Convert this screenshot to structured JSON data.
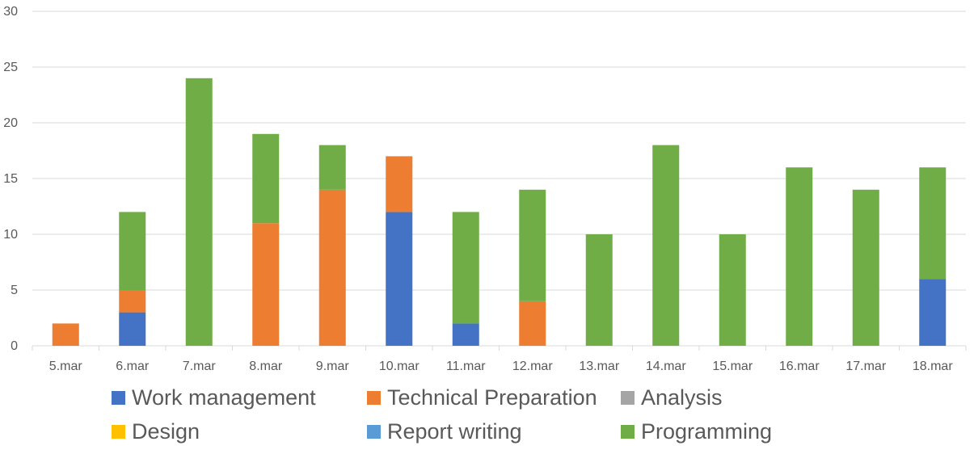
{
  "chart_data": {
    "type": "bar",
    "stacked": true,
    "title": "",
    "xlabel": "",
    "ylabel": "",
    "ylim": [
      0,
      30
    ],
    "yticks": [
      0,
      5,
      10,
      15,
      20,
      25,
      30
    ],
    "grid": true,
    "legend_position": "bottom",
    "categories": [
      "5.mar",
      "6.mar",
      "7.mar",
      "8.mar",
      "9.mar",
      "10.mar",
      "11.mar",
      "12.mar",
      "13.mar",
      "14.mar",
      "15.mar",
      "16.mar",
      "17.mar",
      "18.mar"
    ],
    "series": [
      {
        "name": "Work management",
        "color": "#4472C4",
        "values": [
          0,
          3,
          0,
          0,
          0,
          12,
          2,
          0,
          0,
          0,
          0,
          0,
          0,
          6
        ]
      },
      {
        "name": "Technical Preparation",
        "color": "#ED7D31",
        "values": [
          2,
          2,
          0,
          11,
          14,
          5,
          0,
          4,
          0,
          0,
          0,
          0,
          0,
          0
        ]
      },
      {
        "name": "Analysis",
        "color": "#A5A5A5",
        "values": [
          0,
          0,
          0,
          0,
          0,
          0,
          0,
          0,
          0,
          0,
          0,
          0,
          0,
          0
        ]
      },
      {
        "name": "Design",
        "color": "#FFC000",
        "values": [
          0,
          0,
          0,
          0,
          0,
          0,
          0,
          0,
          0,
          0,
          0,
          0,
          0,
          0
        ]
      },
      {
        "name": "Report writing",
        "color": "#5B9BD5",
        "values": [
          0,
          0,
          0,
          0,
          0,
          0,
          0,
          0,
          0,
          0,
          0,
          0,
          0,
          0
        ]
      },
      {
        "name": "Programming",
        "color": "#70AD47",
        "values": [
          0,
          7,
          24,
          8,
          4,
          0,
          10,
          10,
          10,
          18,
          10,
          16,
          14,
          10
        ]
      }
    ]
  }
}
